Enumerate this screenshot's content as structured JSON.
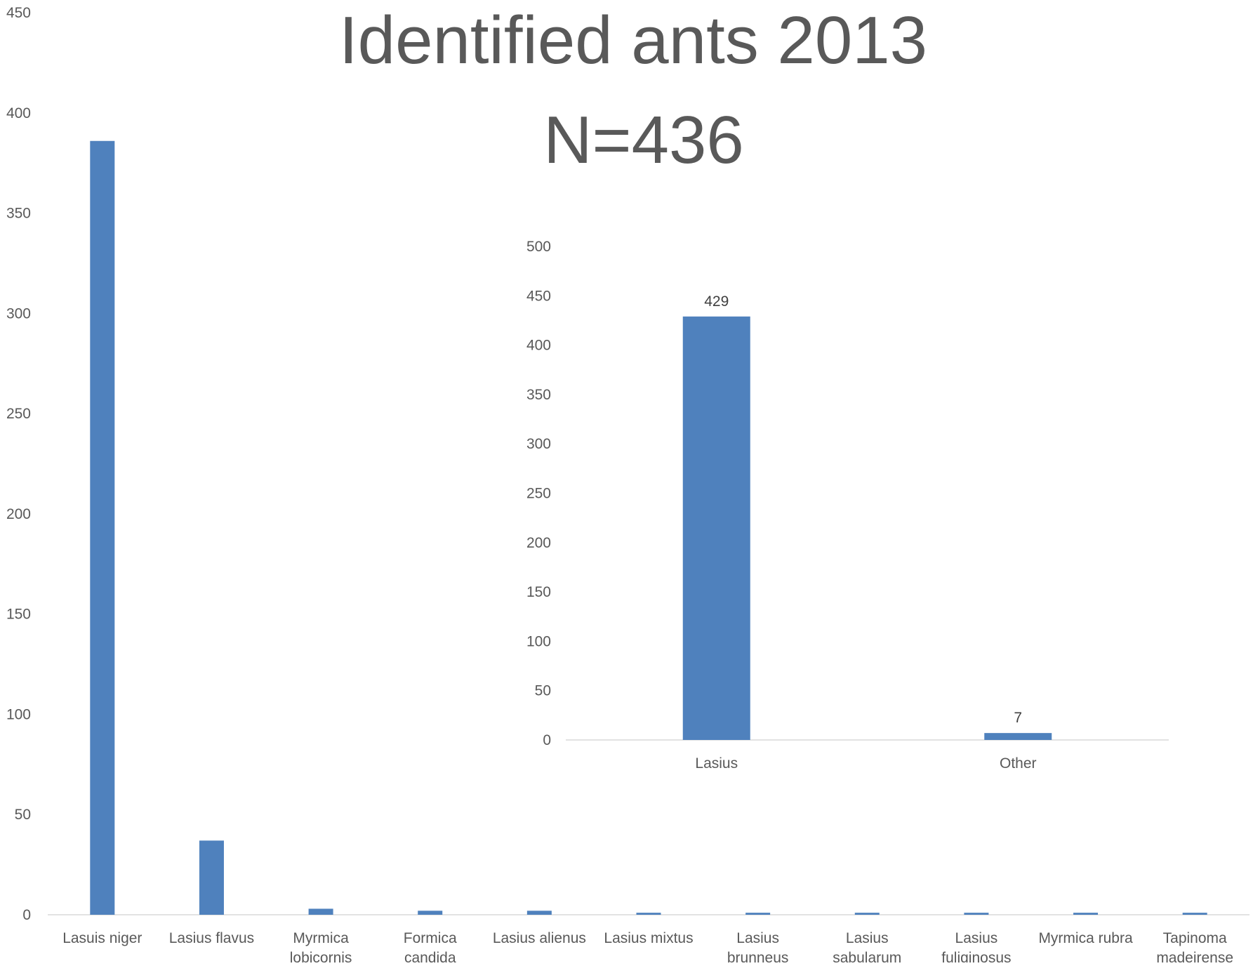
{
  "colors": {
    "bar": "#4f81bd",
    "axis_line": "#d9d9d9",
    "text": "#595959",
    "background": "#ffffff"
  },
  "title": {
    "line1": "Identified ants 2013",
    "line2": "N=436"
  },
  "chart_data": [
    {
      "type": "bar",
      "title": "Identified ants 2013 N=436",
      "xlabel": "",
      "ylabel": "",
      "categories": [
        "Lasuis niger",
        "Lasius flavus",
        "Myrmica lobicornis",
        "Formica candida",
        "Lasius alienus",
        "Lasius mixtus",
        "Lasius brunneus",
        "Lasius sabularum",
        "Lasius fuliginosus",
        "Myrmica rubra",
        "Tapinoma madeirense"
      ],
      "category_lines": [
        [
          "Lasuis niger"
        ],
        [
          "Lasius flavus"
        ],
        [
          "Myrmica",
          "lobicornis"
        ],
        [
          "Formica",
          "candida"
        ],
        [
          "Lasius alienus"
        ],
        [
          "Lasius mixtus"
        ],
        [
          "Lasius",
          "brunneus"
        ],
        [
          "Lasius",
          "sabularum"
        ],
        [
          "Lasius",
          "fuliginosus"
        ],
        [
          "Myrmica rubra"
        ],
        [
          "Tapinoma",
          "madeirense"
        ]
      ],
      "values": [
        386,
        37,
        3,
        2,
        2,
        1,
        1,
        1,
        1,
        1,
        1
      ],
      "ylim": [
        0,
        450
      ],
      "yticks": [
        0,
        50,
        100,
        150,
        200,
        250,
        300,
        350,
        400,
        450
      ],
      "grid": false,
      "legend": "none"
    },
    {
      "type": "bar",
      "title": "",
      "xlabel": "",
      "ylabel": "",
      "categories": [
        "Lasius",
        "Other"
      ],
      "values": [
        429,
        7
      ],
      "data_labels": [
        "429",
        "7"
      ],
      "ylim": [
        0,
        500
      ],
      "yticks": [
        0,
        50,
        100,
        150,
        200,
        250,
        300,
        350,
        400,
        450,
        500
      ],
      "grid": false,
      "legend": "none"
    }
  ]
}
